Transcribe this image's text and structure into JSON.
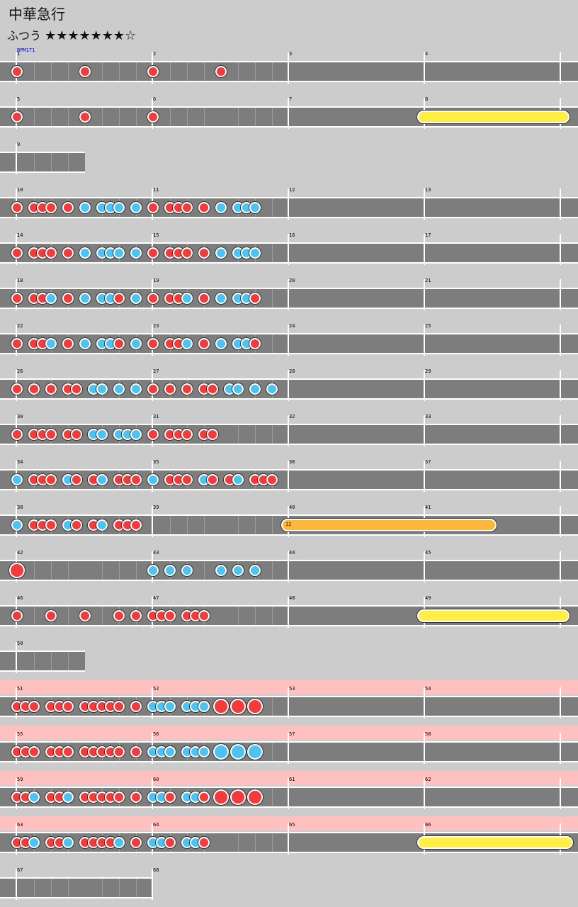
{
  "song": {
    "title": "中華急行",
    "difficulty": "ふつう",
    "stars": "★★★★★★★☆"
  },
  "bpm_label": "BPM171",
  "colors": {
    "don": "#f33b3b",
    "ka": "#4cc3f0",
    "roll": "#ffee44",
    "balloon": "#fdb73a",
    "gogo": "#ffc0c0",
    "lane": "#7d7d7d"
  },
  "rows": [
    {
      "measures": [
        "1",
        "2",
        "3",
        "4"
      ],
      "beats": 16,
      "notes": [
        [
          0,
          "d"
        ],
        [
          8,
          "d"
        ],
        [
          16,
          "d"
        ],
        [
          24,
          "d"
        ]
      ]
    },
    {
      "measures": [
        "5",
        "6",
        "7",
        "8"
      ],
      "beats": 16,
      "notes": [
        [
          0,
          "d"
        ],
        [
          8,
          "d"
        ],
        [
          16,
          "d"
        ]
      ],
      "rolls": [
        [
          24,
          32.3,
          "yellow"
        ]
      ]
    },
    {
      "measures": [
        "9"
      ],
      "beats": 4,
      "notes": []
    },
    {
      "measures": [
        "10",
        "11",
        "12",
        "13"
      ],
      "beats": 16,
      "notes": [
        [
          0,
          "d"
        ],
        [
          2,
          "d"
        ],
        [
          3,
          "d"
        ],
        [
          4,
          "d"
        ],
        [
          6,
          "d"
        ],
        [
          8,
          "k"
        ],
        [
          10,
          "k"
        ],
        [
          11,
          "k"
        ],
        [
          12,
          "k"
        ],
        [
          14,
          "k"
        ],
        [
          16,
          "d"
        ],
        [
          18,
          "d"
        ],
        [
          19,
          "d"
        ],
        [
          20,
          "d"
        ],
        [
          22,
          "d"
        ],
        [
          24,
          "k"
        ],
        [
          26,
          "k"
        ],
        [
          27,
          "k"
        ],
        [
          28,
          "k"
        ]
      ]
    },
    {
      "measures": [
        "14",
        "15",
        "16",
        "17"
      ],
      "beats": 16,
      "notes": [
        [
          0,
          "d"
        ],
        [
          2,
          "d"
        ],
        [
          3,
          "d"
        ],
        [
          4,
          "d"
        ],
        [
          6,
          "d"
        ],
        [
          8,
          "k"
        ],
        [
          10,
          "k"
        ],
        [
          11,
          "k"
        ],
        [
          12,
          "k"
        ],
        [
          14,
          "k"
        ],
        [
          16,
          "d"
        ],
        [
          18,
          "d"
        ],
        [
          19,
          "d"
        ],
        [
          20,
          "d"
        ],
        [
          22,
          "d"
        ],
        [
          24,
          "k"
        ],
        [
          26,
          "k"
        ],
        [
          27,
          "k"
        ],
        [
          28,
          "k"
        ]
      ]
    },
    {
      "measures": [
        "18",
        "19",
        "20",
        "21"
      ],
      "beats": 16,
      "notes": [
        [
          0,
          "d"
        ],
        [
          2,
          "d"
        ],
        [
          3,
          "d"
        ],
        [
          4,
          "k"
        ],
        [
          6,
          "d"
        ],
        [
          8,
          "k"
        ],
        [
          10,
          "k"
        ],
        [
          11,
          "k"
        ],
        [
          12,
          "d"
        ],
        [
          14,
          "k"
        ],
        [
          16,
          "d"
        ],
        [
          18,
          "d"
        ],
        [
          19,
          "d"
        ],
        [
          20,
          "k"
        ],
        [
          22,
          "d"
        ],
        [
          24,
          "k"
        ],
        [
          26,
          "k"
        ],
        [
          27,
          "k"
        ],
        [
          28,
          "d"
        ]
      ]
    },
    {
      "measures": [
        "22",
        "23",
        "24",
        "25"
      ],
      "beats": 16,
      "notes": [
        [
          0,
          "d"
        ],
        [
          2,
          "d"
        ],
        [
          3,
          "d"
        ],
        [
          4,
          "k"
        ],
        [
          6,
          "d"
        ],
        [
          8,
          "k"
        ],
        [
          10,
          "k"
        ],
        [
          11,
          "k"
        ],
        [
          12,
          "d"
        ],
        [
          14,
          "k"
        ],
        [
          16,
          "d"
        ],
        [
          18,
          "d"
        ],
        [
          19,
          "d"
        ],
        [
          20,
          "k"
        ],
        [
          22,
          "d"
        ],
        [
          24,
          "k"
        ],
        [
          26,
          "k"
        ],
        [
          27,
          "k"
        ],
        [
          28,
          "d"
        ]
      ]
    },
    {
      "measures": [
        "26",
        "27",
        "28",
        "29"
      ],
      "beats": 16,
      "notes": [
        [
          0,
          "d"
        ],
        [
          2,
          "d"
        ],
        [
          4,
          "d"
        ],
        [
          6,
          "d"
        ],
        [
          7,
          "d"
        ],
        [
          9,
          "k"
        ],
        [
          10,
          "k"
        ],
        [
          12,
          "k"
        ],
        [
          14,
          "k"
        ],
        [
          16,
          "d"
        ],
        [
          18,
          "d"
        ],
        [
          20,
          "d"
        ],
        [
          22,
          "d"
        ],
        [
          23,
          "d"
        ],
        [
          25,
          "k"
        ],
        [
          26,
          "k"
        ],
        [
          28,
          "k"
        ],
        [
          30,
          "k"
        ]
      ]
    },
    {
      "measures": [
        "30",
        "31",
        "32",
        "33"
      ],
      "beats": 16,
      "notes": [
        [
          0,
          "d"
        ],
        [
          2,
          "d"
        ],
        [
          3,
          "d"
        ],
        [
          4,
          "d"
        ],
        [
          6,
          "d"
        ],
        [
          7,
          "d"
        ],
        [
          9,
          "k"
        ],
        [
          10,
          "k"
        ],
        [
          12,
          "k"
        ],
        [
          13,
          "k"
        ],
        [
          14,
          "k"
        ],
        [
          16,
          "d"
        ],
        [
          18,
          "d"
        ],
        [
          19,
          "d"
        ],
        [
          20,
          "d"
        ],
        [
          22,
          "d"
        ],
        [
          23,
          "d"
        ]
      ]
    },
    {
      "measures": [
        "34",
        "35",
        "36",
        "37"
      ],
      "beats": 16,
      "notes": [
        [
          0,
          "k"
        ],
        [
          2,
          "d"
        ],
        [
          3,
          "d"
        ],
        [
          4,
          "d"
        ],
        [
          6,
          "k"
        ],
        [
          7,
          "d"
        ],
        [
          9,
          "d"
        ],
        [
          10,
          "k"
        ],
        [
          12,
          "d"
        ],
        [
          13,
          "d"
        ],
        [
          14,
          "d"
        ],
        [
          16,
          "k"
        ],
        [
          18,
          "d"
        ],
        [
          19,
          "d"
        ],
        [
          20,
          "d"
        ],
        [
          22,
          "k"
        ],
        [
          23,
          "d"
        ],
        [
          25,
          "d"
        ],
        [
          26,
          "k"
        ],
        [
          28,
          "d"
        ],
        [
          29,
          "d"
        ],
        [
          30,
          "d"
        ]
      ]
    },
    {
      "measures": [
        "38",
        "39",
        "40",
        "41"
      ],
      "beats": 16,
      "notes": [
        [
          0,
          "k"
        ],
        [
          2,
          "d"
        ],
        [
          3,
          "d"
        ],
        [
          4,
          "d"
        ],
        [
          6,
          "k"
        ],
        [
          7,
          "d"
        ],
        [
          9,
          "d"
        ],
        [
          10,
          "k"
        ],
        [
          12,
          "d"
        ],
        [
          13,
          "d"
        ],
        [
          14,
          "d"
        ]
      ],
      "rolls": [
        [
          16,
          28,
          "orange"
        ]
      ],
      "balloon": "12"
    },
    {
      "measures": [
        "42",
        "43",
        "44",
        "45"
      ],
      "beats": 16,
      "notes": [
        [
          0,
          "D"
        ],
        [
          16,
          "k"
        ],
        [
          18,
          "k"
        ],
        [
          20,
          "k"
        ],
        [
          24,
          "k"
        ],
        [
          26,
          "k"
        ],
        [
          28,
          "k"
        ]
      ]
    },
    {
      "measures": [
        "46",
        "47",
        "48",
        "49"
      ],
      "beats": 16,
      "notes": [
        [
          0,
          "d"
        ],
        [
          4,
          "d"
        ],
        [
          8,
          "d"
        ],
        [
          12,
          "d"
        ],
        [
          14,
          "d"
        ],
        [
          16,
          "d"
        ],
        [
          17,
          "d"
        ],
        [
          18,
          "d"
        ],
        [
          20,
          "d"
        ],
        [
          21,
          "d"
        ],
        [
          22,
          "d"
        ]
      ],
      "rolls": [
        [
          24,
          32.3,
          "yellow"
        ]
      ]
    },
    {
      "measures": [
        "50"
      ],
      "beats": 4,
      "notes": []
    },
    {
      "measures": [
        "51",
        "52",
        "53",
        "54"
      ],
      "beats": 16,
      "gogo": true,
      "notes": [
        [
          0,
          "d"
        ],
        [
          1,
          "d"
        ],
        [
          2,
          "d"
        ],
        [
          4,
          "d"
        ],
        [
          5,
          "d"
        ],
        [
          6,
          "d"
        ],
        [
          8,
          "d"
        ],
        [
          9,
          "d"
        ],
        [
          10,
          "d"
        ],
        [
          11,
          "d"
        ],
        [
          12,
          "d"
        ],
        [
          14,
          "d"
        ],
        [
          16,
          "k"
        ],
        [
          17,
          "k"
        ],
        [
          18,
          "k"
        ],
        [
          20,
          "k"
        ],
        [
          21,
          "k"
        ],
        [
          22,
          "k"
        ],
        [
          24,
          "D"
        ],
        [
          26,
          "D"
        ],
        [
          28,
          "D"
        ]
      ]
    },
    {
      "measures": [
        "55",
        "56",
        "57",
        "58"
      ],
      "beats": 16,
      "gogo": true,
      "notes": [
        [
          0,
          "d"
        ],
        [
          1,
          "d"
        ],
        [
          2,
          "d"
        ],
        [
          4,
          "d"
        ],
        [
          5,
          "d"
        ],
        [
          6,
          "d"
        ],
        [
          8,
          "d"
        ],
        [
          9,
          "d"
        ],
        [
          10,
          "d"
        ],
        [
          11,
          "d"
        ],
        [
          12,
          "d"
        ],
        [
          14,
          "d"
        ],
        [
          16,
          "k"
        ],
        [
          17,
          "k"
        ],
        [
          18,
          "k"
        ],
        [
          20,
          "k"
        ],
        [
          21,
          "k"
        ],
        [
          22,
          "k"
        ],
        [
          24,
          "K"
        ],
        [
          26,
          "K"
        ],
        [
          28,
          "K"
        ]
      ]
    },
    {
      "measures": [
        "59",
        "60",
        "61",
        "62"
      ],
      "beats": 16,
      "gogo": true,
      "notes": [
        [
          0,
          "d"
        ],
        [
          1,
          "d"
        ],
        [
          2,
          "k"
        ],
        [
          4,
          "d"
        ],
        [
          5,
          "d"
        ],
        [
          6,
          "k"
        ],
        [
          8,
          "d"
        ],
        [
          9,
          "d"
        ],
        [
          10,
          "d"
        ],
        [
          11,
          "d"
        ],
        [
          12,
          "d"
        ],
        [
          14,
          "d"
        ],
        [
          16,
          "k"
        ],
        [
          17,
          "k"
        ],
        [
          18,
          "d"
        ],
        [
          20,
          "k"
        ],
        [
          21,
          "k"
        ],
        [
          22,
          "d"
        ],
        [
          24,
          "D"
        ],
        [
          26,
          "D"
        ],
        [
          28,
          "D"
        ]
      ]
    },
    {
      "measures": [
        "63",
        "64",
        "65",
        "66"
      ],
      "beats": 16,
      "gogo": true,
      "notes": [
        [
          0,
          "d"
        ],
        [
          1,
          "d"
        ],
        [
          2,
          "k"
        ],
        [
          4,
          "d"
        ],
        [
          5,
          "d"
        ],
        [
          6,
          "k"
        ],
        [
          8,
          "d"
        ],
        [
          9,
          "d"
        ],
        [
          10,
          "d"
        ],
        [
          11,
          "d"
        ],
        [
          12,
          "k"
        ],
        [
          14,
          "d"
        ],
        [
          16,
          "k"
        ],
        [
          17,
          "k"
        ],
        [
          18,
          "d"
        ],
        [
          20,
          "k"
        ],
        [
          21,
          "k"
        ],
        [
          22,
          "d"
        ]
      ],
      "rolls": [
        [
          24,
          32.5,
          "yellow"
        ]
      ]
    },
    {
      "measures": [
        "67",
        "68"
      ],
      "beats": 8,
      "notes": []
    }
  ]
}
